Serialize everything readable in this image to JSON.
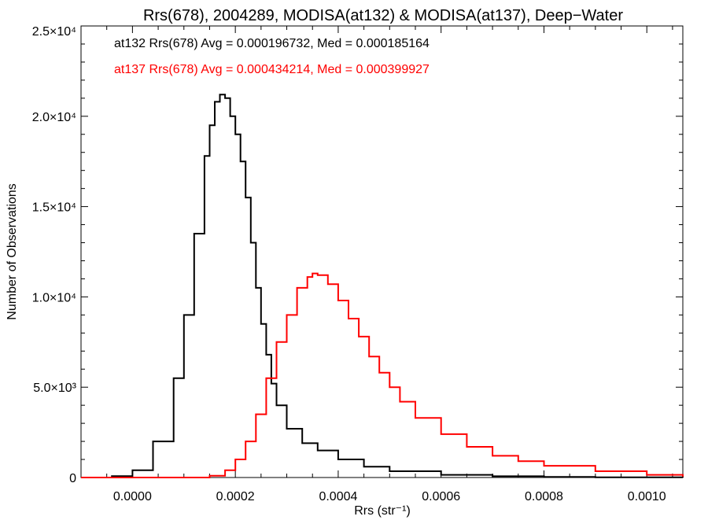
{
  "chart_data": {
    "type": "line",
    "title": "Rrs(678), 2004289, MODISA(at132) & MODISA(at137), Deep−Water",
    "xlabel": "Rrs (str⁻¹)",
    "ylabel": "Number of Observations",
    "xlim": [
      -0.0001,
      0.00107
    ],
    "ylim": [
      0,
      25000
    ],
    "x_ticks": [
      0.0,
      0.0002,
      0.0004,
      0.0006,
      0.0008,
      0.001
    ],
    "x_tick_labels": [
      "0.0000",
      "0.0002",
      "0.0004",
      "0.0006",
      "0.0008",
      "0.0010"
    ],
    "y_ticks": [
      0,
      5000,
      10000,
      15000,
      20000,
      25000
    ],
    "y_tick_labels": [
      "0",
      "5.0×10³",
      "1.0×10⁴",
      "1.5×10⁴",
      "2.0×10⁴",
      "2.5×10⁴"
    ],
    "grid": false,
    "legend_position": "top-left",
    "series": [
      {
        "label": "at132 Rrs(678) Avg = 0.000196732, Med = 0.000185164",
        "color": "#000000",
        "x": [
          -0.0001,
          -4e-05,
          0.0,
          4e-05,
          8e-05,
          0.0001,
          0.00012,
          0.00014,
          0.00015,
          0.00016,
          0.00017,
          0.00018,
          0.00019,
          0.0002,
          0.00021,
          0.00022,
          0.00023,
          0.00024,
          0.00025,
          0.00026,
          0.00027,
          0.00028,
          0.0003,
          0.00033,
          0.00036,
          0.0004,
          0.00045,
          0.0005,
          0.0006,
          0.0007,
          0.0008,
          0.0009,
          0.00107
        ],
        "values": [
          0,
          80,
          400,
          2000,
          5500,
          9000,
          13500,
          17800,
          19500,
          20800,
          21200,
          21000,
          20000,
          19000,
          17500,
          15500,
          13000,
          10500,
          8500,
          6800,
          5200,
          4000,
          2700,
          1900,
          1500,
          1000,
          600,
          350,
          150,
          70,
          30,
          10,
          0
        ]
      },
      {
        "label": "at137 Rrs(678) Avg = 0.000434214, Med = 0.000399927",
        "color": "#ff0000",
        "x": [
          -0.0001,
          0.0001,
          0.00015,
          0.00018,
          0.0002,
          0.00022,
          0.00024,
          0.00026,
          0.00028,
          0.0003,
          0.00032,
          0.00034,
          0.00035,
          0.00036,
          0.00038,
          0.0004,
          0.00042,
          0.00044,
          0.00046,
          0.00048,
          0.0005,
          0.00052,
          0.00055,
          0.0006,
          0.00065,
          0.0007,
          0.00075,
          0.0008,
          0.0009,
          0.001,
          0.00107
        ],
        "values": [
          0,
          0,
          100,
          400,
          1000,
          2000,
          3500,
          5500,
          7500,
          9000,
          10500,
          11100,
          11300,
          11200,
          10700,
          9800,
          8800,
          7800,
          6700,
          5800,
          5000,
          4200,
          3300,
          2400,
          1700,
          1200,
          900,
          650,
          350,
          150,
          50
        ]
      }
    ]
  }
}
